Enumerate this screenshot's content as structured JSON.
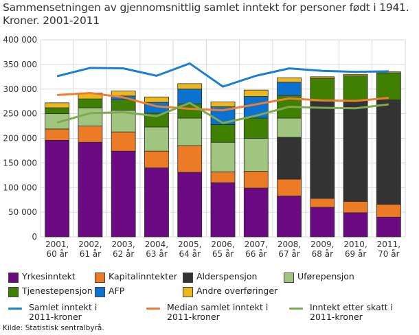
{
  "title_line1": "Sammensetningen av gjennomsnittlig samlet inntekt for personer født i 1941.",
  "title_line2": "Kroner. 2001-2011",
  "source": "Kilde: Statistisk sentralbyrå.",
  "chart_data": {
    "type": "bar",
    "stacked": true,
    "title": "Sammensetningen av gjennomsnittlig samlet inntekt for personer født i 1941. Kroner. 2001-2011",
    "xlabel": "",
    "ylabel": "",
    "ylim": [
      0,
      400000
    ],
    "yticks": [
      0,
      50000,
      100000,
      150000,
      200000,
      250000,
      300000,
      350000,
      400000
    ],
    "ytick_labels": [
      "0",
      "50 000",
      "100 000",
      "150 000",
      "200 000",
      "250 000",
      "300 000",
      "350 000",
      "400 000"
    ],
    "grid": true,
    "legend_position": "bottom",
    "categories": [
      [
        "2001,",
        "60 år"
      ],
      [
        "2002,",
        "61 år"
      ],
      [
        "2003,",
        "62 år"
      ],
      [
        "2004,",
        "63 år"
      ],
      [
        "2005,",
        "64 år"
      ],
      [
        "2006,",
        "65 år"
      ],
      [
        "2007,",
        "66 år"
      ],
      [
        "2008,",
        "67 år"
      ],
      [
        "2009,",
        "68 år"
      ],
      [
        "2010,",
        "69 år"
      ],
      [
        "2011,",
        "70 år"
      ]
    ],
    "series": [
      {
        "name": "Yrkesinntekt",
        "kind": "bar",
        "color": "#6b0a82",
        "values": [
          196000,
          192000,
          174000,
          140000,
          131000,
          110000,
          99000,
          83000,
          60000,
          49000,
          40000
        ]
      },
      {
        "name": "Kapitalinntekter",
        "kind": "bar",
        "color": "#ec7b25",
        "values": [
          23000,
          33000,
          39000,
          34000,
          54000,
          22000,
          34000,
          34000,
          18000,
          23000,
          26000
        ]
      },
      {
        "name": "Alderspensjon",
        "kind": "bar",
        "color": "#333333",
        "values": [
          0,
          0,
          0,
          0,
          0,
          0,
          0,
          85000,
          196000,
          204000,
          212000
        ]
      },
      {
        "name": "Uførepensjon",
        "kind": "bar",
        "color": "#a0c57f",
        "values": [
          31000,
          37000,
          44000,
          49000,
          56000,
          60000,
          67000,
          39000,
          0,
          0,
          0
        ]
      },
      {
        "name": "Tjenestepensjon",
        "kind": "bar",
        "color": "#3f8000",
        "values": [
          12000,
          18000,
          21000,
          28000,
          29000,
          36000,
          41000,
          46000,
          48000,
          51000,
          55000
        ]
      },
      {
        "name": "AFP",
        "kind": "bar",
        "color": "#0b73cf",
        "values": [
          0,
          0,
          8000,
          22000,
          30000,
          36000,
          44000,
          27000,
          0,
          0,
          0
        ]
      },
      {
        "name": "Andre overføringer",
        "kind": "bar",
        "color": "#ecb81f",
        "values": [
          10000,
          12000,
          10000,
          11000,
          11000,
          10000,
          13000,
          9000,
          3000,
          3000,
          2000
        ]
      },
      {
        "name": "Samlet inntekt i 2011-kroner",
        "kind": "line",
        "color": "#1a7fd4",
        "values": [
          326000,
          343000,
          342000,
          327000,
          352000,
          305000,
          327000,
          342000,
          337000,
          335000,
          336000
        ]
      },
      {
        "name": "Median samlet inntekt i 2011-kroner",
        "kind": "line",
        "color": "#ee7d2f",
        "values": [
          288000,
          292000,
          283000,
          265000,
          260000,
          257000,
          269000,
          281000,
          277000,
          276000,
          282000
        ]
      },
      {
        "name": "Inntekt etter skatt i 2011-kroner",
        "kind": "line",
        "color": "#7eaa52",
        "values": [
          232000,
          251000,
          253000,
          245000,
          272000,
          231000,
          246000,
          264000,
          262000,
          261000,
          269000
        ]
      }
    ]
  },
  "legend": {
    "items": [
      {
        "label": "Yrkesinntekt",
        "type": "box",
        "color": "#6b0a82"
      },
      {
        "label": "Kapitalinntekter",
        "type": "box",
        "color": "#ec7b25"
      },
      {
        "label": "Alderspensjon",
        "type": "box",
        "color": "#333333"
      },
      {
        "label": "Uførepensjon",
        "type": "box",
        "color": "#a0c57f"
      },
      {
        "label": "Tjenestepensjon",
        "type": "box",
        "color": "#3f8000"
      },
      {
        "label": "AFP",
        "type": "box",
        "color": "#0b73cf"
      },
      {
        "label": "Andre overføringer",
        "type": "box",
        "color": "#ecb81f"
      },
      {
        "label_line1": "Samlet inntekt i",
        "label_line2": "2011-kroner",
        "type": "line",
        "color": "#1a7fd4"
      },
      {
        "label_line1": "Median samlet inntekt i",
        "label_line2": "2011-kroner",
        "type": "line",
        "color": "#ee7d2f"
      },
      {
        "label_line1": "Inntekt etter skatt i",
        "label_line2": "2011-kroner",
        "type": "line",
        "color": "#7eaa52"
      }
    ]
  }
}
